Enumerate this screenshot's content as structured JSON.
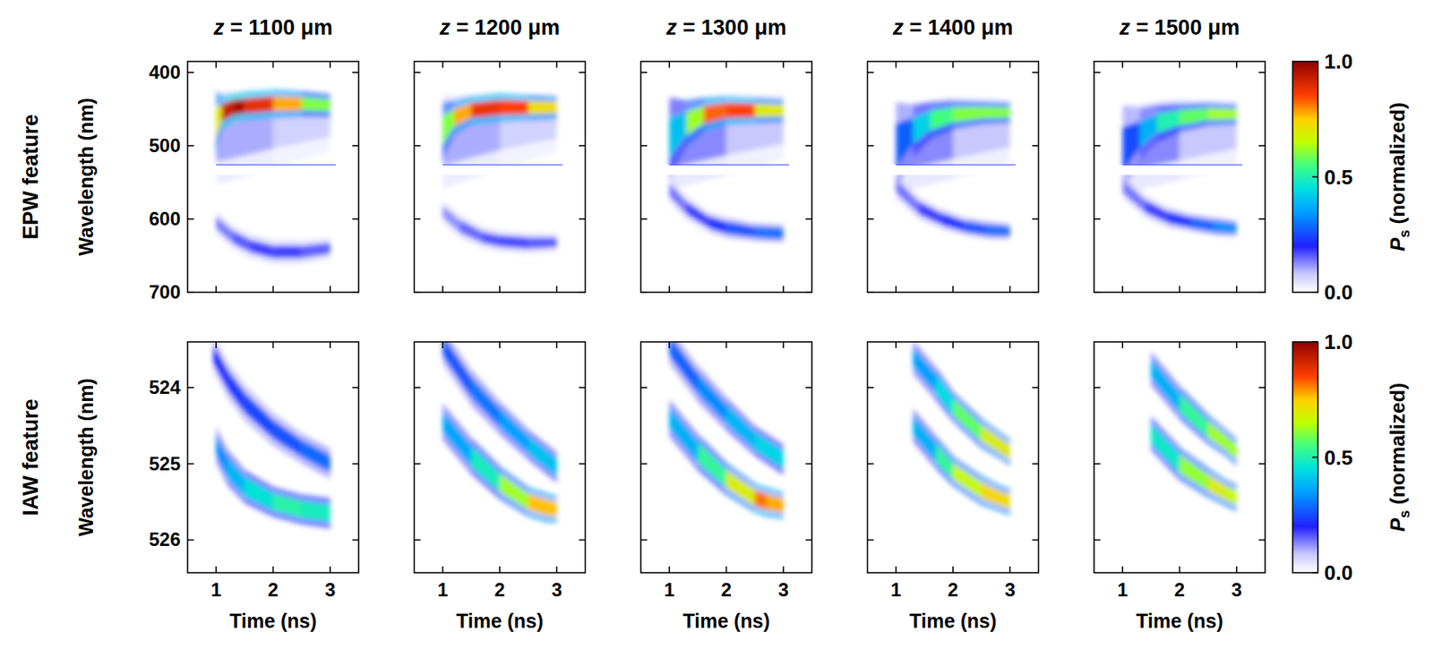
{
  "chart_data": [
    {
      "type": "heatmap",
      "title": "z = 1100 μm",
      "row_label": "EPW feature",
      "ylabel": "Wavelength (nm)",
      "xlim": [
        0.5,
        3.5
      ],
      "xticks": [
        1,
        2,
        3
      ],
      "ylim": [
        700,
        385
      ],
      "yticks": [
        400,
        500,
        600,
        700
      ],
      "tick_labels": "y",
      "notch": [
        526,
        540
      ],
      "streaks": [
        {
          "x": [
            1.0,
            2.0,
            3.0
          ],
          "y": [
            490,
            478,
            468
          ],
          "values": [
            0.12,
            0.08,
            0.05
          ],
          "width": [
            32,
            26,
            20
          ]
        },
        {
          "x": [
            1.0,
            1.3,
            1.6,
            2.0,
            2.5,
            3.0
          ],
          "y": [
            605,
            625,
            637,
            645,
            645,
            640
          ],
          "values": [
            0.12,
            0.15,
            0.17,
            0.18,
            0.17,
            0.14
          ],
          "width": [
            8,
            8,
            8,
            8,
            8,
            7
          ]
        },
        {
          "x": [
            1.0,
            1.1,
            1.3,
            1.5,
            2.0,
            2.5,
            3.0
          ],
          "y": [
            470,
            455,
            448,
            446,
            443,
            443,
            445
          ],
          "values": [
            0.55,
            0.85,
            1.0,
            0.92,
            0.85,
            0.7,
            0.5
          ],
          "width": [
            22,
            12,
            10,
            10,
            10,
            9,
            8
          ]
        }
      ]
    },
    {
      "type": "heatmap",
      "title": "z = 1200 μm",
      "xlim": [
        0.5,
        3.5
      ],
      "xticks": [
        1,
        2,
        3
      ],
      "ylim": [
        700,
        385
      ],
      "yticks": [
        400,
        500,
        600,
        700
      ],
      "tick_labels": false,
      "notch": [
        526,
        540
      ],
      "streaks": [
        {
          "x": [
            1.0,
            2.0,
            3.0
          ],
          "y": [
            495,
            480,
            470
          ],
          "values": [
            0.12,
            0.08,
            0.05
          ],
          "width": [
            32,
            26,
            20
          ]
        },
        {
          "x": [
            1.0,
            1.3,
            1.7,
            2.0,
            2.5,
            3.0
          ],
          "y": [
            590,
            610,
            625,
            630,
            633,
            632
          ],
          "values": [
            0.1,
            0.14,
            0.16,
            0.17,
            0.17,
            0.15
          ],
          "width": [
            8,
            8,
            7,
            7,
            7,
            6
          ]
        },
        {
          "x": [
            1.0,
            1.2,
            1.5,
            2.0,
            2.5,
            3.0
          ],
          "y": [
            480,
            462,
            452,
            448,
            448,
            448
          ],
          "values": [
            0.5,
            0.7,
            0.85,
            0.9,
            0.8,
            0.65
          ],
          "width": [
            20,
            12,
            10,
            10,
            9,
            8
          ]
        }
      ]
    },
    {
      "type": "heatmap",
      "title": "z = 1300 μm",
      "xlim": [
        0.5,
        3.5
      ],
      "xticks": [
        1,
        2,
        3
      ],
      "ylim": [
        700,
        385
      ],
      "yticks": [
        400,
        500,
        600,
        700
      ],
      "tick_labels": false,
      "notch": [
        526,
        540
      ],
      "streaks": [
        {
          "x": [
            1.0,
            2.0,
            3.0
          ],
          "y": [
            500,
            485,
            475
          ],
          "values": [
            0.15,
            0.1,
            0.06
          ],
          "width": [
            30,
            28,
            22
          ]
        },
        {
          "x": [
            1.0,
            1.3,
            1.7,
            2.0,
            2.5,
            3.0
          ],
          "y": [
            560,
            585,
            605,
            612,
            618,
            620
          ],
          "values": [
            0.12,
            0.16,
            0.2,
            0.24,
            0.28,
            0.3
          ],
          "width": [
            9,
            8,
            7,
            7,
            6,
            6
          ]
        },
        {
          "x": [
            1.0,
            1.3,
            1.6,
            2.0,
            2.5,
            3.0
          ],
          "y": [
            490,
            470,
            458,
            452,
            452,
            452
          ],
          "values": [
            0.3,
            0.5,
            0.75,
            0.9,
            0.8,
            0.6
          ],
          "width": [
            28,
            16,
            12,
            10,
            9,
            8
          ]
        }
      ]
    },
    {
      "type": "heatmap",
      "title": "z = 1400 μm",
      "xlim": [
        0.5,
        3.5
      ],
      "xticks": [
        1,
        2,
        3
      ],
      "ylim": [
        700,
        385
      ],
      "yticks": [
        400,
        500,
        600,
        700
      ],
      "tick_labels": false,
      "notch": [
        526,
        540
      ],
      "streaks": [
        {
          "x": [
            1.0,
            2.0,
            3.0
          ],
          "y": [
            505,
            490,
            480
          ],
          "values": [
            0.15,
            0.1,
            0.06
          ],
          "width": [
            30,
            28,
            22
          ]
        },
        {
          "x": [
            1.0,
            1.4,
            1.8,
            2.2,
            2.6,
            3.0
          ],
          "y": [
            555,
            585,
            600,
            610,
            615,
            617
          ],
          "values": [
            0.12,
            0.16,
            0.2,
            0.24,
            0.28,
            0.3
          ],
          "width": [
            9,
            8,
            7,
            6,
            6,
            5
          ]
        },
        {
          "x": [
            1.0,
            1.3,
            1.6,
            2.0,
            2.5,
            3.0
          ],
          "y": [
            500,
            480,
            466,
            458,
            455,
            455
          ],
          "values": [
            0.2,
            0.35,
            0.5,
            0.6,
            0.6,
            0.6
          ],
          "width": [
            30,
            18,
            13,
            10,
            8,
            7
          ]
        }
      ]
    },
    {
      "type": "heatmap",
      "title": "z = 1500 μm",
      "xlim": [
        0.5,
        3.5
      ],
      "xticks": [
        1,
        2,
        3
      ],
      "ylim": [
        700,
        385
      ],
      "yticks": [
        400,
        500,
        600,
        700
      ],
      "tick_labels": false,
      "notch": [
        526,
        540
      ],
      "colorbar": {
        "range": [
          0,
          1
        ],
        "ticks": [
          {
            "value": 0,
            "label": "0.0"
          },
          {
            "value": 0.5,
            "label": "0.5"
          },
          {
            "value": 1,
            "label": "1.0"
          }
        ],
        "label": {
          "symbol": "P",
          "subscript": "s",
          "text": " (normalized)"
        }
      },
      "streaks": [
        {
          "x": [
            1.0,
            2.0,
            3.0
          ],
          "y": [
            505,
            492,
            482
          ],
          "values": [
            0.15,
            0.1,
            0.06
          ],
          "width": [
            30,
            28,
            22
          ]
        },
        {
          "x": [
            1.0,
            1.4,
            1.8,
            2.2,
            2.6,
            3.0
          ],
          "y": [
            555,
            583,
            598,
            605,
            610,
            613
          ],
          "values": [
            0.12,
            0.16,
            0.2,
            0.25,
            0.3,
            0.35
          ],
          "width": [
            9,
            8,
            7,
            6,
            6,
            5
          ]
        },
        {
          "x": [
            1.0,
            1.3,
            1.6,
            2.0,
            2.5,
            3.0
          ],
          "y": [
            505,
            485,
            470,
            462,
            457,
            457
          ],
          "values": [
            0.2,
            0.3,
            0.45,
            0.55,
            0.6,
            0.65
          ],
          "width": [
            30,
            18,
            13,
            10,
            8,
            7
          ]
        }
      ]
    },
    {
      "type": "heatmap",
      "row_label": "IAW feature",
      "ylabel": "Wavelength (nm)",
      "xlabel": "Time (ns)",
      "xlim": [
        0.5,
        3.5
      ],
      "xticks": [
        1,
        2,
        3
      ],
      "ylim": [
        526.43,
        523.4
      ],
      "yticks": [
        524,
        525,
        526
      ],
      "streaks": [
        {
          "x": [
            0.95,
            1.2,
            1.5,
            2.0,
            2.5,
            3.0
          ],
          "y": [
            523.55,
            523.9,
            524.2,
            524.55,
            524.8,
            525.0
          ],
          "values": [
            0.2,
            0.22,
            0.24,
            0.25,
            0.27,
            0.3
          ],
          "width": [
            0.12,
            0.12,
            0.12,
            0.11,
            0.1,
            0.1
          ]
        },
        {
          "x": [
            1.0,
            1.2,
            1.5,
            2.0,
            2.5,
            3.0
          ],
          "y": [
            524.75,
            525.05,
            525.3,
            525.5,
            525.6,
            525.65
          ],
          "values": [
            0.3,
            0.35,
            0.42,
            0.5,
            0.52,
            0.45
          ],
          "width": [
            0.12,
            0.12,
            0.11,
            0.1,
            0.1,
            0.1
          ]
        }
      ]
    },
    {
      "type": "heatmap",
      "xlabel": "Time (ns)",
      "xlim": [
        0.5,
        3.5
      ],
      "xticks": [
        1,
        2,
        3
      ],
      "ylim": [
        526.43,
        523.4
      ],
      "yticks": [
        524,
        525,
        526
      ],
      "tick_labels": "x",
      "streaks": [
        {
          "x": [
            1.0,
            1.5,
            2.0,
            2.5,
            3.0
          ],
          "y": [
            523.45,
            524.0,
            524.4,
            524.75,
            525.05
          ],
          "values": [
            0.25,
            0.28,
            0.32,
            0.38,
            0.42
          ],
          "width": [
            0.12,
            0.12,
            0.11,
            0.1,
            0.1
          ]
        },
        {
          "x": [
            1.0,
            1.5,
            2.0,
            2.5,
            2.8,
            3.0
          ],
          "y": [
            524.45,
            524.9,
            525.25,
            525.5,
            525.57,
            525.6
          ],
          "values": [
            0.3,
            0.42,
            0.55,
            0.7,
            0.82,
            0.7
          ],
          "width": [
            0.12,
            0.12,
            0.11,
            0.1,
            0.1,
            0.09
          ]
        }
      ]
    },
    {
      "type": "heatmap",
      "xlabel": "Time (ns)",
      "xlim": [
        0.5,
        3.5
      ],
      "xticks": [
        1,
        2,
        3
      ],
      "ylim": [
        526.43,
        523.4
      ],
      "yticks": [
        524,
        525,
        526
      ],
      "tick_labels": "x",
      "streaks": [
        {
          "x": [
            1.0,
            1.5,
            2.0,
            2.5,
            3.0
          ],
          "y": [
            523.45,
            523.95,
            524.35,
            524.7,
            524.95
          ],
          "values": [
            0.25,
            0.3,
            0.35,
            0.42,
            0.45
          ],
          "width": [
            0.12,
            0.12,
            0.11,
            0.1,
            0.1
          ]
        },
        {
          "x": [
            1.0,
            1.5,
            2.0,
            2.5,
            2.7,
            3.0
          ],
          "y": [
            524.4,
            524.85,
            525.2,
            525.45,
            525.5,
            525.55
          ],
          "values": [
            0.3,
            0.45,
            0.6,
            0.78,
            0.85,
            0.7
          ],
          "width": [
            0.12,
            0.12,
            0.11,
            0.1,
            0.1,
            0.09
          ]
        }
      ]
    },
    {
      "type": "heatmap",
      "xlabel": "Time (ns)",
      "xlim": [
        0.5,
        3.5
      ],
      "xticks": [
        1,
        2,
        3
      ],
      "ylim": [
        526.43,
        523.4
      ],
      "yticks": [
        524,
        525,
        526
      ],
      "tick_labels": "x",
      "streaks": [
        {
          "x": [
            1.3,
            1.7,
            2.0,
            2.5,
            2.8,
            3.0
          ],
          "y": [
            523.6,
            523.95,
            524.25,
            524.6,
            524.75,
            524.85
          ],
          "values": [
            0.3,
            0.4,
            0.5,
            0.65,
            0.72,
            0.68
          ],
          "width": [
            0.11,
            0.11,
            0.1,
            0.1,
            0.09,
            0.09
          ]
        },
        {
          "x": [
            1.3,
            1.7,
            2.0,
            2.5,
            2.8,
            3.0
          ],
          "y": [
            524.5,
            524.85,
            525.1,
            525.35,
            525.45,
            525.5
          ],
          "values": [
            0.3,
            0.45,
            0.6,
            0.72,
            0.75,
            0.7
          ],
          "width": [
            0.11,
            0.11,
            0.1,
            0.1,
            0.09,
            0.09
          ]
        }
      ]
    },
    {
      "type": "heatmap",
      "xlabel": "Time (ns)",
      "xlim": [
        0.5,
        3.5
      ],
      "xticks": [
        1,
        2,
        3
      ],
      "ylim": [
        526.43,
        523.4
      ],
      "yticks": [
        524,
        525,
        526
      ],
      "tick_labels": "x",
      "colorbar": {
        "range": [
          0,
          1
        ],
        "ticks": [
          {
            "value": 0,
            "label": "0.0"
          },
          {
            "value": 0.5,
            "label": "0.5"
          },
          {
            "value": 1,
            "label": "1.0"
          }
        ],
        "label": {
          "symbol": "P",
          "subscript": "s",
          "text": " (normalized)"
        }
      },
      "streaks": [
        {
          "x": [
            1.5,
            2.0,
            2.5,
            2.8,
            3.0
          ],
          "y": [
            523.75,
            524.2,
            524.55,
            524.72,
            524.85
          ],
          "values": [
            0.3,
            0.45,
            0.6,
            0.65,
            0.6
          ],
          "width": [
            0.11,
            0.11,
            0.1,
            0.09,
            0.09
          ]
        },
        {
          "x": [
            1.5,
            2.0,
            2.5,
            2.8,
            3.0
          ],
          "y": [
            524.6,
            525.0,
            525.25,
            525.38,
            525.45
          ],
          "values": [
            0.4,
            0.55,
            0.68,
            0.7,
            0.62
          ],
          "width": [
            0.11,
            0.11,
            0.1,
            0.09,
            0.09
          ]
        }
      ]
    }
  ]
}
